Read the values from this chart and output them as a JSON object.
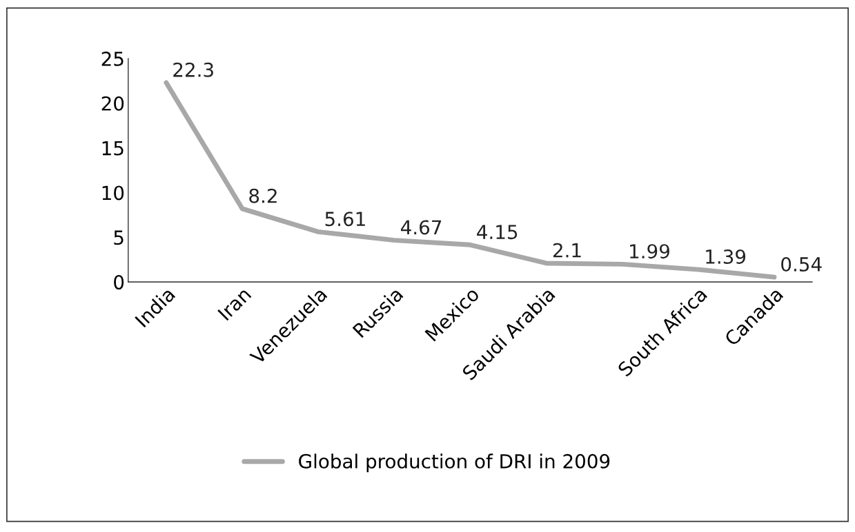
{
  "chart_data": {
    "type": "line",
    "categories": [
      "India",
      "Iran",
      "Venezuela",
      "Russia",
      "Mexico",
      "Saudi Arabia",
      null,
      "South Africa",
      "Canada"
    ],
    "series": [
      {
        "name": "Global production of DRI in 2009",
        "color": "#a8a8a8",
        "values": [
          22.3,
          8.2,
          5.61,
          4.67,
          4.15,
          2.1,
          1.99,
          1.39,
          0.54
        ]
      }
    ],
    "ylim": [
      0,
      25
    ],
    "yticks": [
      0,
      5,
      10,
      15,
      20,
      25
    ],
    "data_labels": true,
    "legend": "bottom",
    "grid": false,
    "marker": "none",
    "line_style": "solid"
  }
}
